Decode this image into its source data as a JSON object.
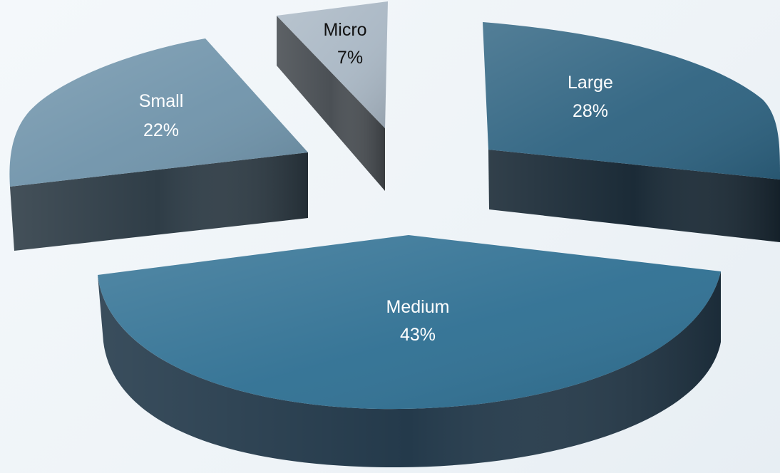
{
  "chart_data": {
    "type": "pie",
    "title": "",
    "style": "3d-exploded",
    "slices": [
      {
        "label": "Micro",
        "value": 7,
        "display": "7%",
        "top": "#a9b7c4",
        "side": "#4b5055",
        "text": "#111111"
      },
      {
        "label": "Large",
        "value": 28,
        "display": "28%",
        "top": "#2d6280",
        "side": "#1b2b37",
        "text": "#ffffff"
      },
      {
        "label": "Medium",
        "value": 43,
        "display": "43%",
        "top": "#2e6f92",
        "side": "#243a4b",
        "text": "#ffffff"
      },
      {
        "label": "Small",
        "value": 22,
        "display": "22%",
        "top": "#6f93aa",
        "side": "#2f3d47",
        "text": "#ffffff"
      }
    ]
  }
}
